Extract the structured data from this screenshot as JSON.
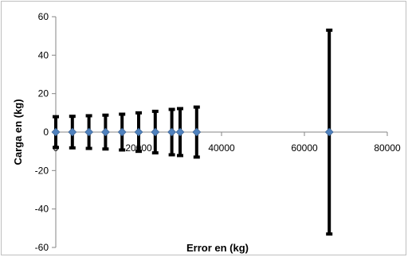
{
  "chart_data": {
    "type": "scatter",
    "title": "",
    "xlabel": "Error en (kg)",
    "ylabel": "Carga en (kg)",
    "xlim": [
      0,
      80000
    ],
    "ylim": [
      -60,
      60
    ],
    "x_ticks": [
      0,
      20000,
      40000,
      60000,
      80000
    ],
    "y_ticks": [
      -60,
      -40,
      -20,
      0,
      20,
      40,
      60
    ],
    "grid": false,
    "legend": "none",
    "colors": {
      "marker": "#4f81bd",
      "error_bar": "#000000",
      "axis": "#868686"
    },
    "series": [
      {
        "x": [
          0,
          4000,
          8000,
          12000,
          16000,
          20000,
          24000,
          28000,
          30000,
          34000,
          66000
        ],
        "y": [
          0,
          0,
          0,
          0,
          0,
          0,
          0,
          0,
          0,
          0,
          0
        ],
        "y_error": [
          8,
          8.2,
          8.5,
          8.8,
          9.3,
          10,
          10.8,
          11.8,
          12.2,
          13,
          53
        ]
      }
    ]
  }
}
